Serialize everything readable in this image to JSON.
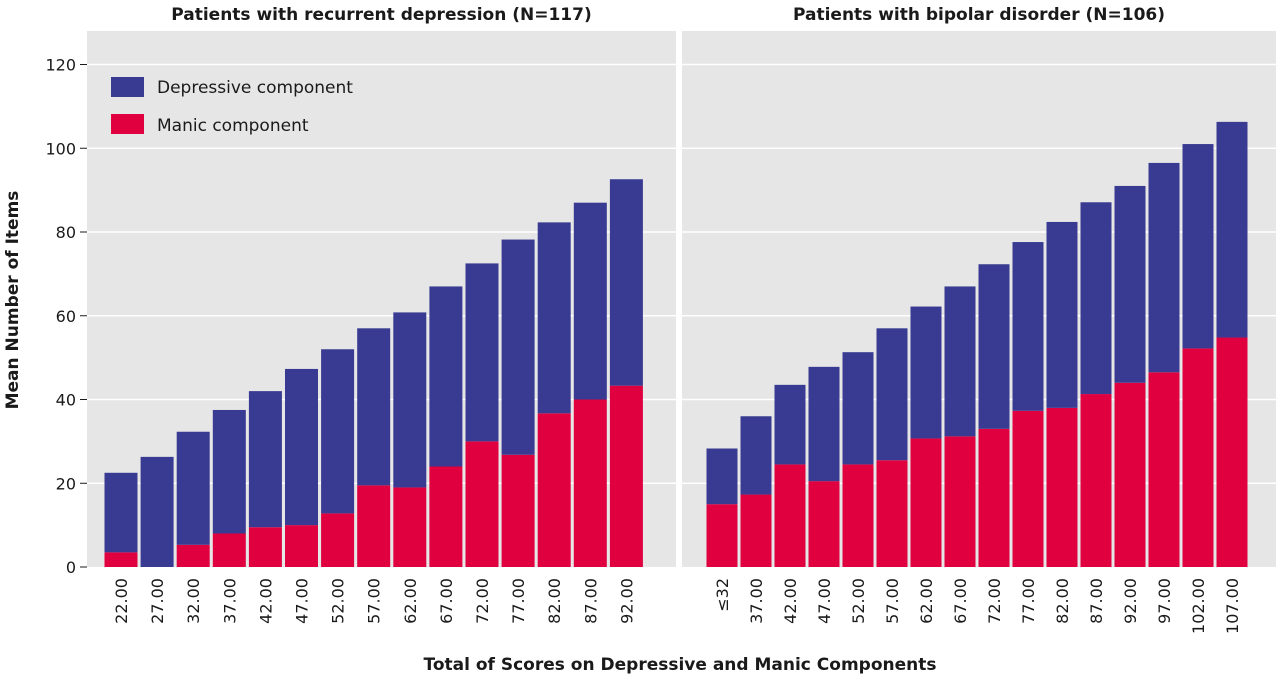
{
  "chart_data": {
    "type": "bar",
    "stacked": true,
    "ylabel": "Mean Number of Items",
    "xlabel": "Total of Scores on Depressive and Manic Components",
    "ylim": [
      0,
      128
    ],
    "yticks": [
      "0",
      "20",
      "40",
      "60",
      "80",
      "100",
      "120"
    ],
    "grid": true,
    "legend": {
      "placement": "top-left",
      "entries": [
        "Depressive component",
        "Manic component"
      ]
    },
    "colors": {
      "depressive": "#383b91",
      "manic": "#e0003f",
      "panel_bg": "#e6e6e6",
      "grid": "#ffffff"
    },
    "panels": [
      {
        "title": "Patients with recurrent depression (N=117)",
        "categories": [
          "22.00",
          "27.00",
          "32.00",
          "37.00",
          "42.00",
          "47.00",
          "52.00",
          "57.00",
          "62.00",
          "67.00",
          "72.00",
          "77.00",
          "82.00",
          "87.00",
          "92.00"
        ],
        "series": [
          {
            "name": "Manic component",
            "values": [
              3.5,
              0,
              5.3,
              8,
              9.5,
              10,
              12.8,
              19.5,
              19,
              24,
              30,
              26.8,
              36.7,
              40,
              43.3
            ]
          },
          {
            "name": "Depressive component",
            "values": [
              19,
              26.3,
              27,
              29.5,
              32.5,
              37.3,
              39.2,
              37.5,
              41.8,
              43,
              42.5,
              51.4,
              45.6,
              47,
              49.3
            ]
          }
        ]
      },
      {
        "title": "Patients with bipolar disorder (N=106)",
        "categories": [
          "≤32",
          "37.00",
          "42.00",
          "47.00",
          "52.00",
          "57.00",
          "62.00",
          "67.00",
          "72.00",
          "77.00",
          "82.00",
          "87.00",
          "92.00",
          "97.00",
          "102.00",
          "107.00"
        ],
        "series": [
          {
            "name": "Manic component",
            "values": [
              15,
              17.3,
              24.5,
              20.5,
              24.5,
              25.5,
              30.7,
              31.2,
              33,
              37.3,
              38,
              41.3,
              44,
              46.5,
              52.2,
              54.8
            ]
          },
          {
            "name": "Depressive component",
            "values": [
              13.3,
              18.7,
              19,
              27.3,
              26.8,
              31.5,
              31.5,
              35.8,
              39.3,
              40.3,
              44.4,
              45.8,
              47,
              50,
              48.8,
              51.5
            ]
          }
        ]
      }
    ]
  }
}
